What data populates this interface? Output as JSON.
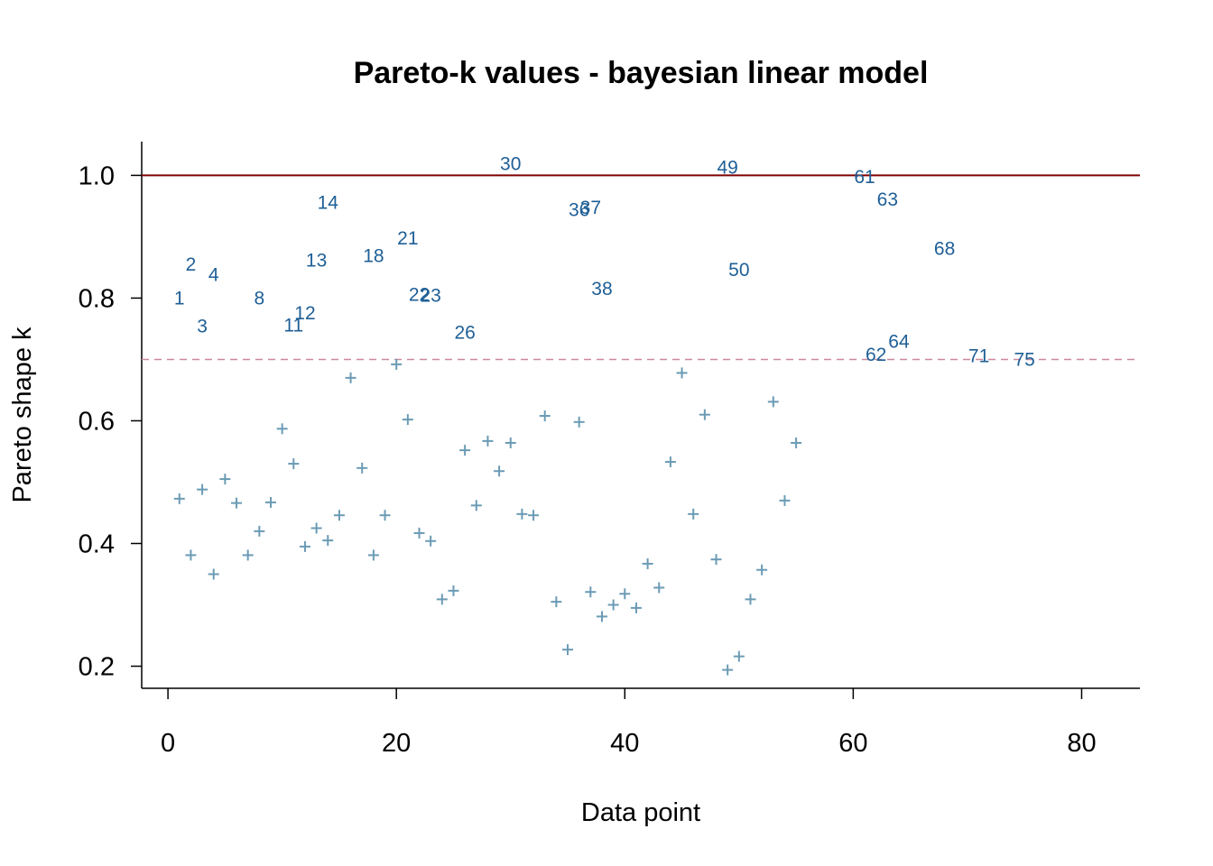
{
  "chart_data": {
    "type": "scatter",
    "title": "Pareto-k values - bayesian linear model",
    "xlabel": "Data point",
    "ylabel": "Pareto shape k",
    "xlim": [
      -2.3,
      85.1
    ],
    "ylim": [
      0.164,
      1.055
    ],
    "xticks": [
      0,
      20,
      40,
      60,
      80
    ],
    "xtick_labels": [
      "0",
      "20",
      "40",
      "60",
      "80"
    ],
    "yticks": [
      0.2,
      0.4,
      0.6,
      0.8,
      1.0
    ],
    "ytick_labels": [
      "0.2",
      "0.4",
      "0.6",
      "0.8",
      "1.0"
    ],
    "grid": false,
    "reference_lines": [
      {
        "y": 1.0,
        "style": "solid",
        "color": "#800000"
      },
      {
        "y": 0.7,
        "style": "dashed",
        "color": "#cc8899"
      }
    ],
    "colors": {
      "points": "#6b9bb5",
      "labels": "#1f5f96"
    },
    "points": [
      {
        "x": 1,
        "y": 0.473
      },
      {
        "x": 2,
        "y": 0.381
      },
      {
        "x": 3,
        "y": 0.488
      },
      {
        "x": 4,
        "y": 0.35
      },
      {
        "x": 5,
        "y": 0.505
      },
      {
        "x": 6,
        "y": 0.466
      },
      {
        "x": 7,
        "y": 0.381
      },
      {
        "x": 8,
        "y": 0.42
      },
      {
        "x": 9,
        "y": 0.467
      },
      {
        "x": 10,
        "y": 0.587
      },
      {
        "x": 11,
        "y": 0.53
      },
      {
        "x": 12,
        "y": 0.395
      },
      {
        "x": 13,
        "y": 0.425
      },
      {
        "x": 14,
        "y": 0.405
      },
      {
        "x": 15,
        "y": 0.446
      },
      {
        "x": 16,
        "y": 0.67
      },
      {
        "x": 17,
        "y": 0.523
      },
      {
        "x": 18,
        "y": 0.381
      },
      {
        "x": 19,
        "y": 0.446
      },
      {
        "x": 20,
        "y": 0.692
      },
      {
        "x": 21,
        "y": 0.602
      },
      {
        "x": 22,
        "y": 0.417
      },
      {
        "x": 23,
        "y": 0.404
      },
      {
        "x": 24,
        "y": 0.309
      },
      {
        "x": 25,
        "y": 0.323
      },
      {
        "x": 26,
        "y": 0.552
      },
      {
        "x": 27,
        "y": 0.462
      },
      {
        "x": 28,
        "y": 0.567
      },
      {
        "x": 29,
        "y": 0.518
      },
      {
        "x": 30,
        "y": 0.564
      },
      {
        "x": 31,
        "y": 0.448
      },
      {
        "x": 32,
        "y": 0.446
      },
      {
        "x": 33,
        "y": 0.608
      },
      {
        "x": 34,
        "y": 0.305
      },
      {
        "x": 35,
        "y": 0.227
      },
      {
        "x": 36,
        "y": 0.598
      },
      {
        "x": 37,
        "y": 0.321
      },
      {
        "x": 38,
        "y": 0.281
      },
      {
        "x": 39,
        "y": 0.3
      },
      {
        "x": 40,
        "y": 0.318
      },
      {
        "x": 41,
        "y": 0.295
      },
      {
        "x": 42,
        "y": 0.367
      },
      {
        "x": 43,
        "y": 0.328
      },
      {
        "x": 44,
        "y": 0.533
      },
      {
        "x": 45,
        "y": 0.678
      },
      {
        "x": 46,
        "y": 0.448
      },
      {
        "x": 47,
        "y": 0.61
      },
      {
        "x": 48,
        "y": 0.374
      },
      {
        "x": 49,
        "y": 0.194
      },
      {
        "x": 50,
        "y": 0.216
      },
      {
        "x": 51,
        "y": 0.309
      },
      {
        "x": 52,
        "y": 0.357
      },
      {
        "x": 53,
        "y": 0.631
      },
      {
        "x": 54,
        "y": 0.47
      },
      {
        "x": 55,
        "y": 0.564
      }
    ],
    "labeled_points": [
      {
        "x": 1,
        "y": 0.8,
        "label": "1"
      },
      {
        "x": 2,
        "y": 0.855,
        "label": "2"
      },
      {
        "x": 3,
        "y": 0.754,
        "label": "3"
      },
      {
        "x": 4,
        "y": 0.838,
        "label": "4"
      },
      {
        "x": 8,
        "y": 0.8,
        "label": "8"
      },
      {
        "x": 11,
        "y": 0.756,
        "label": "11"
      },
      {
        "x": 12,
        "y": 0.776,
        "label": "12"
      },
      {
        "x": 13,
        "y": 0.862,
        "label": "13"
      },
      {
        "x": 14,
        "y": 0.956,
        "label": "14"
      },
      {
        "x": 18,
        "y": 0.869,
        "label": "18"
      },
      {
        "x": 21,
        "y": 0.898,
        "label": "21"
      },
      {
        "x": 22,
        "y": 0.806,
        "label": "22"
      },
      {
        "x": 23,
        "y": 0.804,
        "label": "23"
      },
      {
        "x": 26,
        "y": 0.744,
        "label": "26"
      },
      {
        "x": 30,
        "y": 1.019,
        "label": "30"
      },
      {
        "x": 36,
        "y": 0.944,
        "label": "36"
      },
      {
        "x": 37,
        "y": 0.948,
        "label": "37"
      },
      {
        "x": 38,
        "y": 0.815,
        "label": "38"
      },
      {
        "x": 49,
        "y": 1.013,
        "label": "49"
      },
      {
        "x": 50,
        "y": 0.846,
        "label": "50"
      },
      {
        "x": 61,
        "y": 0.998,
        "label": "61"
      },
      {
        "x": 62,
        "y": 0.708,
        "label": "62"
      },
      {
        "x": 63,
        "y": 0.961,
        "label": "63"
      },
      {
        "x": 64,
        "y": 0.729,
        "label": "64"
      },
      {
        "x": 68,
        "y": 0.881,
        "label": "68"
      },
      {
        "x": 71,
        "y": 0.706,
        "label": "71"
      },
      {
        "x": 75,
        "y": 0.7,
        "label": "75"
      }
    ]
  }
}
